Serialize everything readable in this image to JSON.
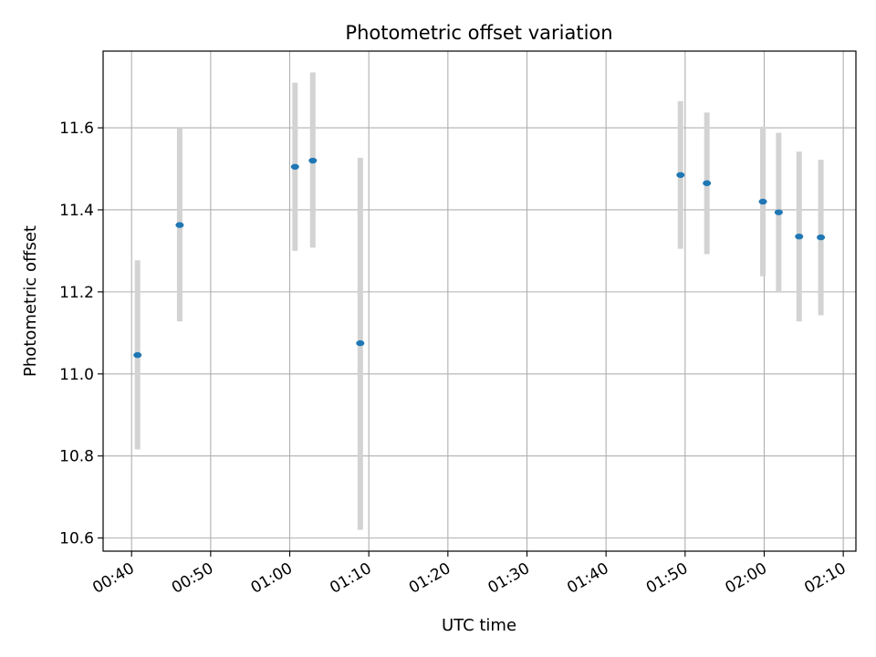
{
  "chart_data": {
    "type": "scatter",
    "title": "Photometric offset variation",
    "xlabel": "UTC time",
    "ylabel": "Photometric offset",
    "x_ticks": [
      "00:40",
      "00:50",
      "01:00",
      "01:10",
      "01:20",
      "01:30",
      "01:40",
      "01:50",
      "02:00",
      "02:10"
    ],
    "y_ticks": [
      "10.6",
      "10.8",
      "11.0",
      "11.2",
      "11.4",
      "11.6"
    ],
    "xlim": [
      "00:36.4",
      "02:11.6"
    ],
    "ylim": [
      10.568,
      11.787
    ],
    "grid": true,
    "legend": "none",
    "colors": {
      "point": "#1f77b4",
      "errorbar": "#d3d3d3",
      "grid": "#b0b0b0"
    },
    "series": [
      {
        "points": [
          {
            "time": "00:40:45",
            "y": 11.046,
            "y_low": 10.816,
            "y_high": 11.277
          },
          {
            "time": "00:46:05",
            "y": 11.363,
            "y_low": 11.128,
            "y_high": 11.6
          },
          {
            "time": "01:00:40",
            "y": 11.505,
            "y_low": 11.3,
            "y_high": 11.71
          },
          {
            "time": "01:02:55",
            "y": 11.52,
            "y_low": 11.308,
            "y_high": 11.735
          },
          {
            "time": "01:08:55",
            "y": 11.075,
            "y_low": 10.62,
            "y_high": 11.527
          },
          {
            "time": "01:49:25",
            "y": 11.485,
            "y_low": 11.305,
            "y_high": 11.665
          },
          {
            "time": "01:52:45",
            "y": 11.465,
            "y_low": 11.292,
            "y_high": 11.637
          },
          {
            "time": "01:59:50",
            "y": 11.42,
            "y_low": 11.238,
            "y_high": 11.603
          },
          {
            "time": "02:01:50",
            "y": 11.394,
            "y_low": 11.198,
            "y_high": 11.588
          },
          {
            "time": "02:04:25",
            "y": 11.335,
            "y_low": 11.128,
            "y_high": 11.542
          },
          {
            "time": "02:07:10",
            "y": 11.333,
            "y_low": 11.143,
            "y_high": 11.522
          }
        ]
      }
    ]
  }
}
